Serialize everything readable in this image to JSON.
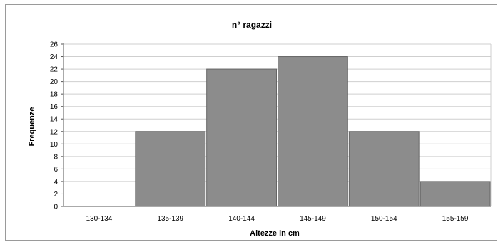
{
  "chart_data": {
    "type": "bar",
    "title": "n° ragazzi",
    "xlabel": "Altezze in cm",
    "ylabel": "Frequenze",
    "categories": [
      "130-134",
      "135-139",
      "140-144",
      "145-149",
      "150-154",
      "155-159"
    ],
    "values": [
      0,
      12,
      22,
      24,
      12,
      4
    ],
    "ylim": [
      0,
      26
    ],
    "yticks": [
      0,
      2,
      4,
      6,
      8,
      10,
      12,
      14,
      16,
      18,
      20,
      22,
      24,
      26
    ],
    "grid": true,
    "colors": {
      "bar": "#8c8c8c",
      "bar_border": "#666666",
      "grid": "#cfcfcf",
      "axis": "#555555"
    }
  }
}
